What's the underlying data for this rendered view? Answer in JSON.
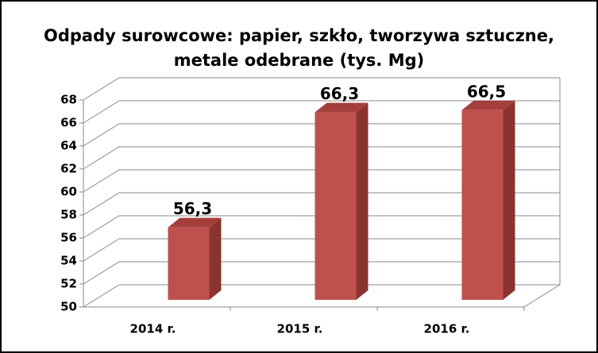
{
  "chart_data": {
    "type": "bar3d",
    "title": "Odpady surowcowe: papier, szkło, tworzywa sztuczne, metale odebrane (tys. Mg)",
    "categories": [
      "2014 r.",
      "2015 r.",
      "2016 r."
    ],
    "values": [
      56.3,
      66.3,
      66.5
    ],
    "value_labels": [
      "56,3",
      "66,3",
      "66,5"
    ],
    "color": "#c0504d",
    "ylim": [
      50,
      68
    ],
    "yticks": [
      50,
      52,
      54,
      56,
      58,
      60,
      62,
      64,
      66,
      68
    ],
    "grid": true
  }
}
